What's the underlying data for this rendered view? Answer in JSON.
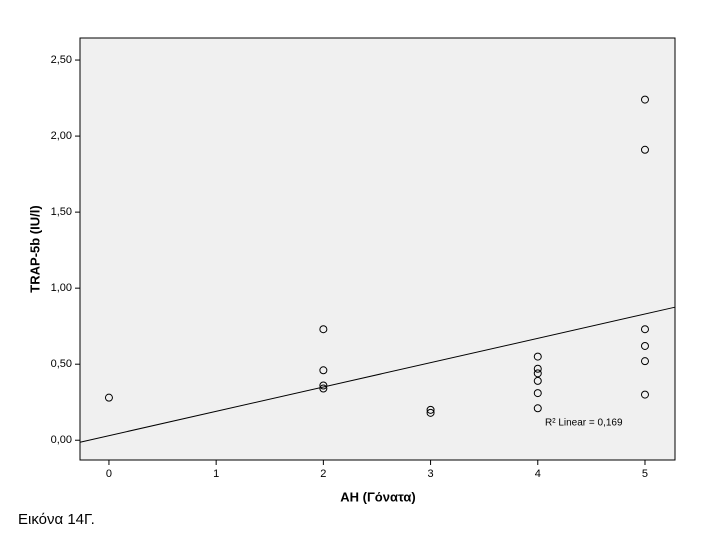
{
  "chart_data": {
    "type": "scatter",
    "x_label": "AH (Γόνατα)",
    "y_label": "TRAP-5b (IU/l)",
    "caption": "Εικόνα 14Γ.",
    "annotation": "R² Linear = 0,169",
    "x": [
      0,
      2,
      2,
      2,
      2,
      3,
      3,
      4,
      4,
      4,
      4,
      4,
      4,
      5,
      5,
      5,
      5,
      5,
      5
    ],
    "values": [
      0.28,
      0.73,
      0.46,
      0.36,
      0.34,
      0.2,
      0.18,
      0.55,
      0.47,
      0.44,
      0.39,
      0.31,
      0.21,
      2.24,
      1.91,
      0.73,
      0.62,
      0.52,
      0.3
    ],
    "color": "#000000",
    "fit": {
      "intercept": 0.03,
      "slope": 0.16
    },
    "xlim": [
      -0.27,
      5.28
    ],
    "xticks": [
      0,
      1,
      2,
      3,
      4,
      5
    ],
    "ylim": [
      -0.13,
      2.645
    ],
    "yticks": [
      {
        "value": 0,
        "label": "0,00"
      },
      {
        "value": 0.5,
        "label": "0,50"
      },
      {
        "value": 1,
        "label": "1,00"
      },
      {
        "value": 1.5,
        "label": "1,50"
      },
      {
        "value": 2,
        "label": "2,00"
      },
      {
        "value": 2.5,
        "label": "2,50"
      }
    ]
  }
}
